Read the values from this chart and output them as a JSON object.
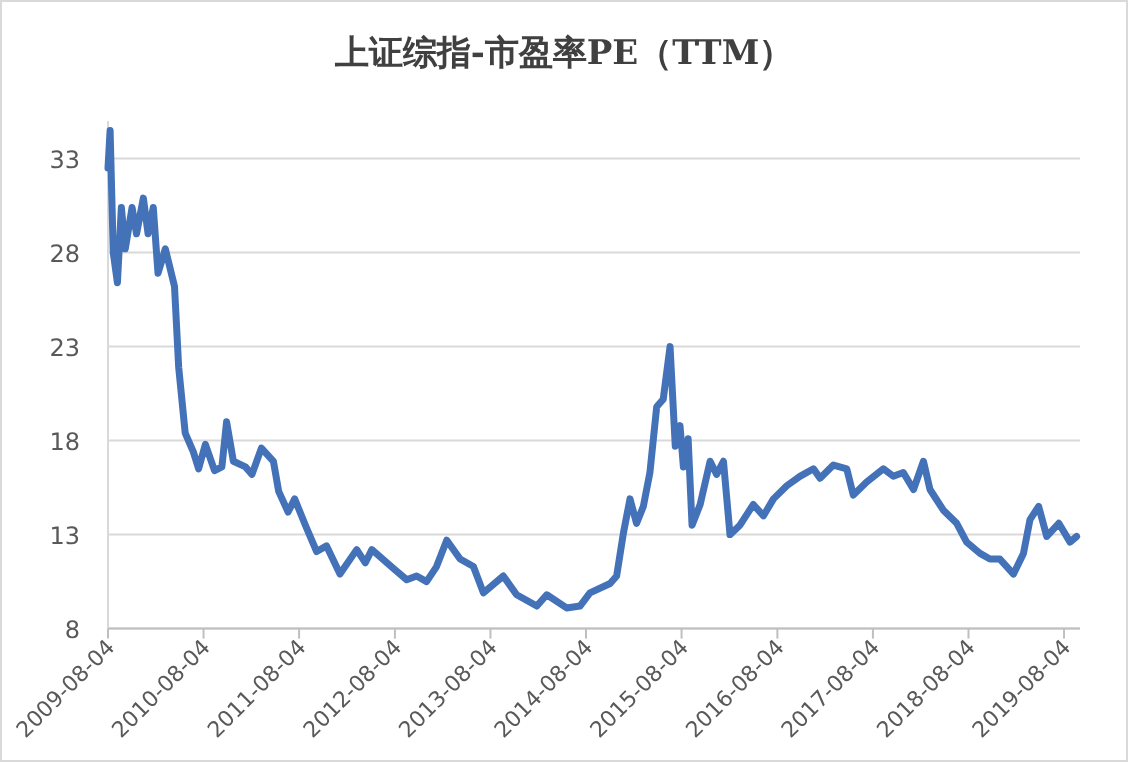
{
  "chart_data": {
    "type": "line",
    "title": "上证综指-市盈率PE（TTM）",
    "x": [
      "2009-08-04",
      "2009-08-12",
      "2009-08-24",
      "2009-09-09",
      "2009-09-24",
      "2009-10-09",
      "2009-11-04",
      "2009-11-21",
      "2009-12-17",
      "2010-01-04",
      "2010-01-24",
      "2010-02-11",
      "2010-03-11",
      "2010-04-15",
      "2010-05-01",
      "2010-05-26",
      "2010-06-26",
      "2010-07-16",
      "2010-08-11",
      "2010-09-15",
      "2010-10-13",
      "2010-10-31",
      "2010-11-26",
      "2011-01-11",
      "2011-02-05",
      "2011-03-13",
      "2011-04-28",
      "2011-05-18",
      "2011-06-23",
      "2011-07-18",
      "2011-08-28",
      "2011-10-10",
      "2011-11-17",
      "2012-01-07",
      "2012-03-11",
      "2012-04-13",
      "2012-05-08",
      "2012-07-29",
      "2012-09-18",
      "2012-10-26",
      "2012-12-03",
      "2013-01-10",
      "2013-02-18",
      "2013-04-10",
      "2013-05-31",
      "2013-07-08",
      "2013-09-22",
      "2013-11-12",
      "2014-01-28",
      "2014-03-07",
      "2014-05-22",
      "2014-07-12",
      "2014-08-19",
      "2014-11-04",
      "2014-11-29",
      "2014-12-25",
      "2015-01-19",
      "2015-02-13",
      "2015-03-11",
      "2015-04-05",
      "2015-05-01",
      "2015-05-26",
      "2015-06-21",
      "2015-07-11",
      "2015-07-29",
      "2015-08-11",
      "2015-08-29",
      "2015-09-13",
      "2015-10-14",
      "2015-11-21",
      "2015-12-16",
      "2016-01-11",
      "2016-02-05",
      "2016-03-14",
      "2016-05-04",
      "2016-06-12",
      "2016-07-20",
      "2016-09-09",
      "2016-10-29",
      "2016-12-20",
      "2017-01-14",
      "2017-03-06",
      "2017-04-26",
      "2017-05-21",
      "2017-07-11",
      "2017-09-13",
      "2017-10-21",
      "2017-11-28",
      "2018-01-06",
      "2018-02-13",
      "2018-03-10",
      "2018-04-30",
      "2018-06-20",
      "2018-07-28",
      "2018-09-17",
      "2018-10-25",
      "2018-12-02",
      "2019-01-23",
      "2019-03-02",
      "2019-03-27",
      "2019-04-29",
      "2019-05-30",
      "2019-07-15",
      "2019-08-27",
      "2019-09-21"
    ],
    "series": [
      {
        "color": "#4472b8",
        "values": [
          32.5,
          34.5,
          28.0,
          26.4,
          30.4,
          28.2,
          30.4,
          29.0,
          30.9,
          29.0,
          30.4,
          26.9,
          28.2,
          26.2,
          21.9,
          18.4,
          17.4,
          16.5,
          17.8,
          16.4,
          16.6,
          19.0,
          16.9,
          16.6,
          16.2,
          17.6,
          16.9,
          15.3,
          14.2,
          14.9,
          13.5,
          12.1,
          12.4,
          10.9,
          12.2,
          11.5,
          12.2,
          11.2,
          10.6,
          10.8,
          10.5,
          11.3,
          12.7,
          11.7,
          11.3,
          9.9,
          10.8,
          9.8,
          9.2,
          9.8,
          9.1,
          9.2,
          9.9,
          10.4,
          10.8,
          13.1,
          14.9,
          13.6,
          14.5,
          16.3,
          19.8,
          20.2,
          23.0,
          17.7,
          18.8,
          16.6,
          18.1,
          13.5,
          14.6,
          16.9,
          16.2,
          16.9,
          13.0,
          13.5,
          14.6,
          14.0,
          14.9,
          15.6,
          16.1,
          16.5,
          16.0,
          16.7,
          16.5,
          15.1,
          15.8,
          16.5,
          16.1,
          16.3,
          15.4,
          16.9,
          15.4,
          14.3,
          13.6,
          12.6,
          12.0,
          11.7,
          11.7,
          10.9,
          12.0,
          13.8,
          14.5,
          12.9,
          13.6,
          12.6,
          12.9
        ]
      }
    ],
    "xlim": [
      "2009-08-04",
      "2019-10-04"
    ],
    "xticks": [
      "2009-08-04",
      "2010-08-04",
      "2011-08-04",
      "2012-08-04",
      "2013-08-04",
      "2014-08-04",
      "2015-08-04",
      "2016-08-04",
      "2017-08-04",
      "2018-08-04",
      "2019-08-04"
    ],
    "ylim": [
      8,
      35
    ],
    "yticks": [
      8,
      13,
      18,
      23,
      28,
      33
    ],
    "grid": "y"
  }
}
